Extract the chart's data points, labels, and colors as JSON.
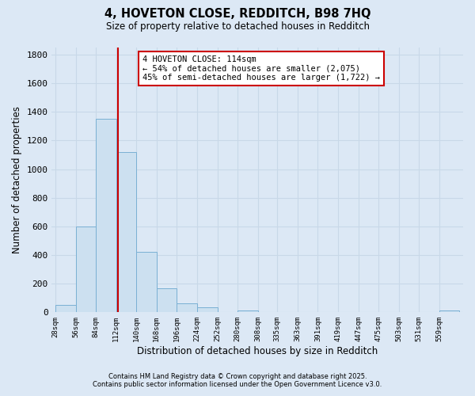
{
  "title1": "4, HOVETON CLOSE, REDDITCH, B98 7HQ",
  "title2": "Size of property relative to detached houses in Redditch",
  "xlabel": "Distribution of detached houses by size in Redditch",
  "ylabel": "Number of detached properties",
  "bin_edges": [
    28,
    56,
    84,
    112,
    140,
    168,
    196,
    224,
    252,
    280,
    308,
    335,
    363,
    391,
    419,
    447,
    475,
    503,
    531,
    559,
    587
  ],
  "bar_heights": [
    50,
    600,
    1350,
    1120,
    420,
    170,
    65,
    35,
    0,
    15,
    0,
    0,
    0,
    0,
    0,
    0,
    0,
    0,
    0,
    15
  ],
  "bar_color": "#cce0f0",
  "bar_edge_color": "#7ab0d4",
  "vline_x": 114,
  "vline_color": "#cc0000",
  "annotation_line1": "4 HOVETON CLOSE: 114sqm",
  "annotation_line2": "← 54% of detached houses are smaller (2,075)",
  "annotation_line3": "45% of semi-detached houses are larger (1,722) →",
  "annotation_box_color": "#ffffff",
  "annotation_box_edge": "#cc0000",
  "ylim": [
    0,
    1850
  ],
  "yticks": [
    0,
    200,
    400,
    600,
    800,
    1000,
    1200,
    1400,
    1600,
    1800
  ],
  "background_color": "#dce8f5",
  "grid_color": "#c8d8e8",
  "footer1": "Contains HM Land Registry data © Crown copyright and database right 2025.",
  "footer2": "Contains public sector information licensed under the Open Government Licence v3.0."
}
